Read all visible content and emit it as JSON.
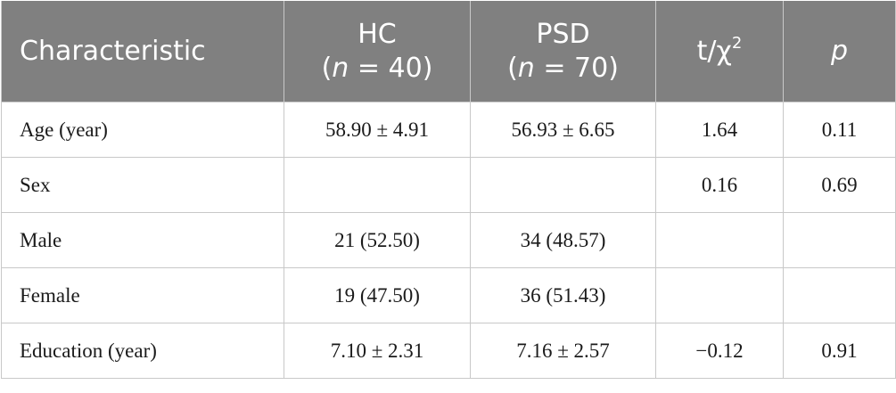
{
  "header": {
    "characteristic": "Characteristic",
    "hc": {
      "group": "HC",
      "n_symbol": "n",
      "n_rest": " = 40)"
    },
    "psd": {
      "group": "PSD",
      "n_symbol": "n",
      "n_rest": " = 70)"
    },
    "stat": {
      "base": "t/χ",
      "sup": "2"
    },
    "p": "p"
  },
  "rows": [
    {
      "label": "Age (year)",
      "hc": "58.90 ± 4.91",
      "psd": "56.93 ± 6.65",
      "stat": "1.64",
      "p": "0.11"
    },
    {
      "label": "Sex",
      "hc": "",
      "psd": "",
      "stat": "0.16",
      "p": "0.69"
    },
    {
      "label": "Male",
      "hc": "21 (52.50)",
      "psd": "34 (48.57)",
      "stat": "",
      "p": ""
    },
    {
      "label": "Female",
      "hc": "19 (47.50)",
      "psd": "36 (51.43)",
      "stat": "",
      "p": ""
    },
    {
      "label": "Education (year)",
      "hc": "7.10 ± 2.31",
      "psd": "7.16 ± 2.57",
      "stat": "−0.12",
      "p": "0.91"
    }
  ]
}
